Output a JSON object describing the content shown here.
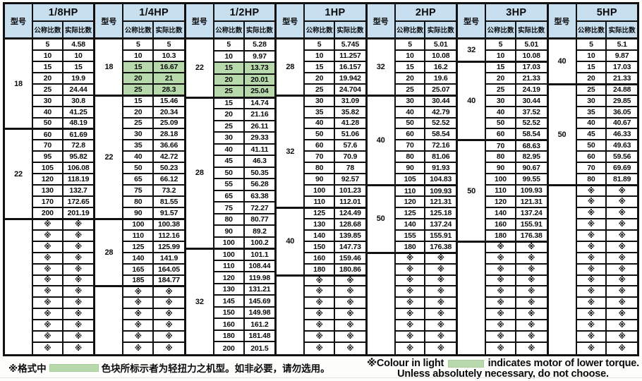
{
  "header": {
    "model_col_label": "型号",
    "nominal_label": "公称比数",
    "actual_label": "实际比数"
  },
  "symbols": {
    "not_available": "※"
  },
  "colors": {
    "header_bg": "#c8dff0",
    "highlight_green": "#b7d9ab",
    "border": "#111111"
  },
  "groups": [
    {
      "hp": "1/8HP",
      "rows_total": 28,
      "sections": [
        {
          "model": "18",
          "rows": [
            [
              "5",
              "4.58"
            ],
            [
              "10",
              "10"
            ],
            [
              "15",
              "15"
            ],
            [
              "20",
              "19.9"
            ],
            [
              "25",
              "24.44"
            ],
            [
              "30",
              "30.8"
            ],
            [
              "40",
              "41.25"
            ],
            [
              "50",
              "48.19"
            ]
          ]
        },
        {
          "model": "22",
          "rows": [
            [
              "60",
              "61.69"
            ],
            [
              "70",
              "72.8"
            ],
            [
              "95",
              "95.82"
            ],
            [
              "105",
              "106.08"
            ],
            [
              "120",
              "118.19"
            ],
            [
              "130",
              "132.7"
            ],
            [
              "170",
              "172.65"
            ],
            [
              "200",
              "201.19"
            ]
          ]
        },
        {
          "model": "",
          "rows": [
            [
              "※",
              "※"
            ],
            [
              "※",
              "※"
            ],
            [
              "※",
              "※"
            ],
            [
              "※",
              "※"
            ],
            [
              "※",
              "※"
            ],
            [
              "※",
              "※"
            ],
            [
              "※",
              "※"
            ],
            [
              "※",
              "※"
            ],
            [
              "※",
              "※"
            ],
            [
              "※",
              "※"
            ],
            [
              "※",
              "※"
            ],
            [
              "※",
              "※"
            ]
          ]
        }
      ]
    },
    {
      "hp": "1/4HP",
      "rows_total": 28,
      "sections": [
        {
          "model": "18",
          "rows": [
            [
              "5",
              "5"
            ],
            [
              "10",
              "10.3"
            ],
            [
              "15",
              "16.67",
              "hl"
            ],
            [
              "20",
              "21",
              "hl"
            ],
            [
              "25",
              "28.3",
              "hl"
            ]
          ]
        },
        {
          "model": "22",
          "rows": [
            [
              "15",
              "15.46"
            ],
            [
              "20",
              "20.34"
            ],
            [
              "25",
              "25.09"
            ],
            [
              "30",
              "28.18"
            ],
            [
              "35",
              "36.66"
            ],
            [
              "40",
              "42.72"
            ],
            [
              "50",
              "50.23"
            ],
            [
              "65",
              "66.12"
            ],
            [
              "75",
              "73.2"
            ],
            [
              "80",
              "81.55"
            ],
            [
              "90",
              "91.57"
            ]
          ]
        },
        {
          "model": "28",
          "rows": [
            [
              "100",
              "100.38"
            ],
            [
              "110",
              "112.16"
            ],
            [
              "125",
              "125.99"
            ],
            [
              "140",
              "141.9"
            ],
            [
              "165",
              "164.05"
            ],
            [
              "185",
              "184.77"
            ]
          ]
        },
        {
          "model": "",
          "rows": [
            [
              "※",
              "※"
            ],
            [
              "※",
              "※"
            ],
            [
              "※",
              "※"
            ],
            [
              "※",
              "※"
            ],
            [
              "※",
              "※"
            ],
            [
              "※",
              "※"
            ]
          ]
        }
      ]
    },
    {
      "hp": "1/2HP",
      "rows_total": 27,
      "sections": [
        {
          "model": "22",
          "rows": [
            [
              "5",
              "5.28"
            ],
            [
              "10",
              "9.97"
            ],
            [
              "15",
              "13.73",
              "hl"
            ],
            [
              "20",
              "20.01",
              "hl"
            ],
            [
              "25",
              "25.04",
              "hl"
            ]
          ]
        },
        {
          "model": "28",
          "rows": [
            [
              "15",
              "14.74"
            ],
            [
              "20",
              "21.16"
            ],
            [
              "25",
              "26.11"
            ],
            [
              "30",
              "29.33"
            ],
            [
              "40",
              "41.11"
            ],
            [
              "45",
              "46.3"
            ],
            [
              "50",
              "50.35"
            ],
            [
              "55",
              "56.28"
            ],
            [
              "65",
              "63.38"
            ],
            [
              "75",
              "72.27"
            ],
            [
              "80",
              "80.77"
            ],
            [
              "90",
              "89.2"
            ],
            [
              "100",
              "100.2"
            ]
          ]
        },
        {
          "model": "32",
          "rows": [
            [
              "100",
              "101.1"
            ],
            [
              "110",
              "108.44"
            ],
            [
              "120",
              "119.98"
            ],
            [
              "130",
              "131.21"
            ],
            [
              "145",
              "145.69"
            ],
            [
              "150",
              "149.98"
            ],
            [
              "160",
              "161.2"
            ],
            [
              "180",
              "181.48"
            ],
            [
              "200",
              "201.5"
            ]
          ]
        }
      ]
    },
    {
      "hp": "1HP",
      "rows_total": 28,
      "sections": [
        {
          "model": "28",
          "rows": [
            [
              "5",
              "5.745"
            ],
            [
              "10",
              "11.257"
            ],
            [
              "15",
              "16.157"
            ],
            [
              "20",
              "19.942"
            ],
            [
              "25",
              "24.704"
            ]
          ]
        },
        {
          "model": "32",
          "rows": [
            [
              "30",
              "31.09"
            ],
            [
              "35",
              "35.82"
            ],
            [
              "40",
              "41.28"
            ],
            [
              "50",
              "51.06"
            ],
            [
              "60",
              "57.6"
            ],
            [
              "70",
              "70.9"
            ],
            [
              "80",
              "78"
            ],
            [
              "90",
              "92.57"
            ],
            [
              "100",
              "101.23"
            ],
            [
              "110",
              "112.01"
            ]
          ]
        },
        {
          "model": "40",
          "rows": [
            [
              "125",
              "124.49"
            ],
            [
              "130",
              "128.68"
            ],
            [
              "140",
              "139.85"
            ],
            [
              "150",
              "147.73"
            ],
            [
              "160",
              "159.46"
            ],
            [
              "180",
              "180.86"
            ]
          ]
        },
        {
          "model": "",
          "rows": [
            [
              "※",
              "※"
            ],
            [
              "※",
              "※"
            ],
            [
              "※",
              "※"
            ],
            [
              "※",
              "※"
            ],
            [
              "※",
              "※"
            ],
            [
              "※",
              "※"
            ],
            [
              "※",
              "※"
            ]
          ]
        }
      ]
    },
    {
      "hp": "2HP",
      "rows_total": 28,
      "sections": [
        {
          "model": "32",
          "rows": [
            [
              "5",
              "5.01"
            ],
            [
              "10",
              "10.08"
            ],
            [
              "15",
              "16.2"
            ],
            [
              "20",
              "19.6"
            ],
            [
              "25",
              "25.07"
            ]
          ]
        },
        {
          "model": "40",
          "rows": [
            [
              "30",
              "30.44"
            ],
            [
              "40",
              "42.79"
            ],
            [
              "50",
              "52.52"
            ],
            [
              "60",
              "58.54"
            ],
            [
              "70",
              "72.16"
            ],
            [
              "80",
              "81.06"
            ],
            [
              "90",
              "91.93"
            ],
            [
              "105",
              "104.83"
            ]
          ]
        },
        {
          "model": "50",
          "rows": [
            [
              "110",
              "109.93"
            ],
            [
              "120",
              "121.31"
            ],
            [
              "125",
              "125.18"
            ],
            [
              "140",
              "137.24"
            ],
            [
              "155",
              "155.91"
            ],
            [
              "180",
              "176.38"
            ]
          ]
        },
        {
          "model": "",
          "rows": [
            [
              "※",
              "※"
            ],
            [
              "※",
              "※"
            ],
            [
              "※",
              "※"
            ],
            [
              "※",
              "※"
            ],
            [
              "※",
              "※"
            ],
            [
              "※",
              "※"
            ],
            [
              "※",
              "※"
            ],
            [
              "※",
              "※"
            ],
            [
              "※",
              "※"
            ]
          ]
        }
      ]
    },
    {
      "hp": "3HP",
      "rows_total": 28,
      "sections": [
        {
          "model": "32",
          "rows": [
            [
              "5",
              "5.01"
            ],
            [
              "10",
              "10.08"
            ]
          ]
        },
        {
          "model": "40",
          "rows": [
            [
              "15",
              "17.03"
            ],
            [
              "20",
              "21.33"
            ],
            [
              "25",
              "24.19"
            ],
            [
              "30",
              "30.44"
            ],
            [
              "40",
              "37.52"
            ],
            [
              "50",
              "52.52"
            ],
            [
              "60",
              "58.54"
            ]
          ]
        },
        {
          "model": "50",
          "rows": [
            [
              "70",
              "68.63"
            ],
            [
              "80",
              "82.95"
            ],
            [
              "90",
              "90.67"
            ],
            [
              "100",
              "99.55"
            ],
            [
              "110",
              "109.93"
            ],
            [
              "120",
              "121.31"
            ],
            [
              "140",
              "137.24"
            ],
            [
              "160",
              "155.91"
            ],
            [
              "180",
              "176.38"
            ]
          ]
        },
        {
          "model": "",
          "rows": [
            [
              "※",
              "※"
            ],
            [
              "※",
              "※"
            ],
            [
              "※",
              "※"
            ],
            [
              "※",
              "※"
            ],
            [
              "※",
              "※"
            ],
            [
              "※",
              "※"
            ],
            [
              "※",
              "※"
            ],
            [
              "※",
              "※"
            ],
            [
              "※",
              "※"
            ],
            [
              "※",
              "※"
            ]
          ]
        }
      ]
    },
    {
      "hp": "5HP",
      "rows_total": 28,
      "sections": [
        {
          "model": "40",
          "rows": [
            [
              "5",
              "5.1"
            ],
            [
              "10",
              "9.87"
            ],
            [
              "15",
              "17.03"
            ],
            [
              "20",
              "21.33"
            ]
          ]
        },
        {
          "model": "50",
          "rows": [
            [
              "25",
              "24.88"
            ],
            [
              "30",
              "29.85"
            ],
            [
              "35",
              "36.05"
            ],
            [
              "40",
              "40.67"
            ],
            [
              "45",
              "46.33"
            ],
            [
              "50",
              "49.63"
            ],
            [
              "60",
              "59.56"
            ],
            [
              "70",
              "69.69"
            ],
            [
              "80",
              "81.89"
            ]
          ]
        },
        {
          "model": "",
          "rows": [
            [
              "※",
              "※"
            ],
            [
              "※",
              "※"
            ],
            [
              "※",
              "※"
            ],
            [
              "※",
              "※"
            ],
            [
              "※",
              "※"
            ],
            [
              "※",
              "※"
            ],
            [
              "※",
              "※"
            ],
            [
              "※",
              "※"
            ],
            [
              "※",
              "※"
            ],
            [
              "※",
              "※"
            ],
            [
              "※",
              "※"
            ],
            [
              "※",
              "※"
            ],
            [
              "※",
              "※"
            ],
            [
              "※",
              "※"
            ],
            [
              "※",
              "※"
            ]
          ]
        }
      ]
    }
  ],
  "footer": {
    "cn_prefix": "※格式中",
    "cn_suffix": "色块所标示者为轻扭力之机型。如非必要，请勿选用。",
    "en_prefix": "※Colour in light",
    "en_line1_suffix": "indicates motor of lower torque.",
    "en_line2": "Unless absolutely necessary, do not choose."
  }
}
